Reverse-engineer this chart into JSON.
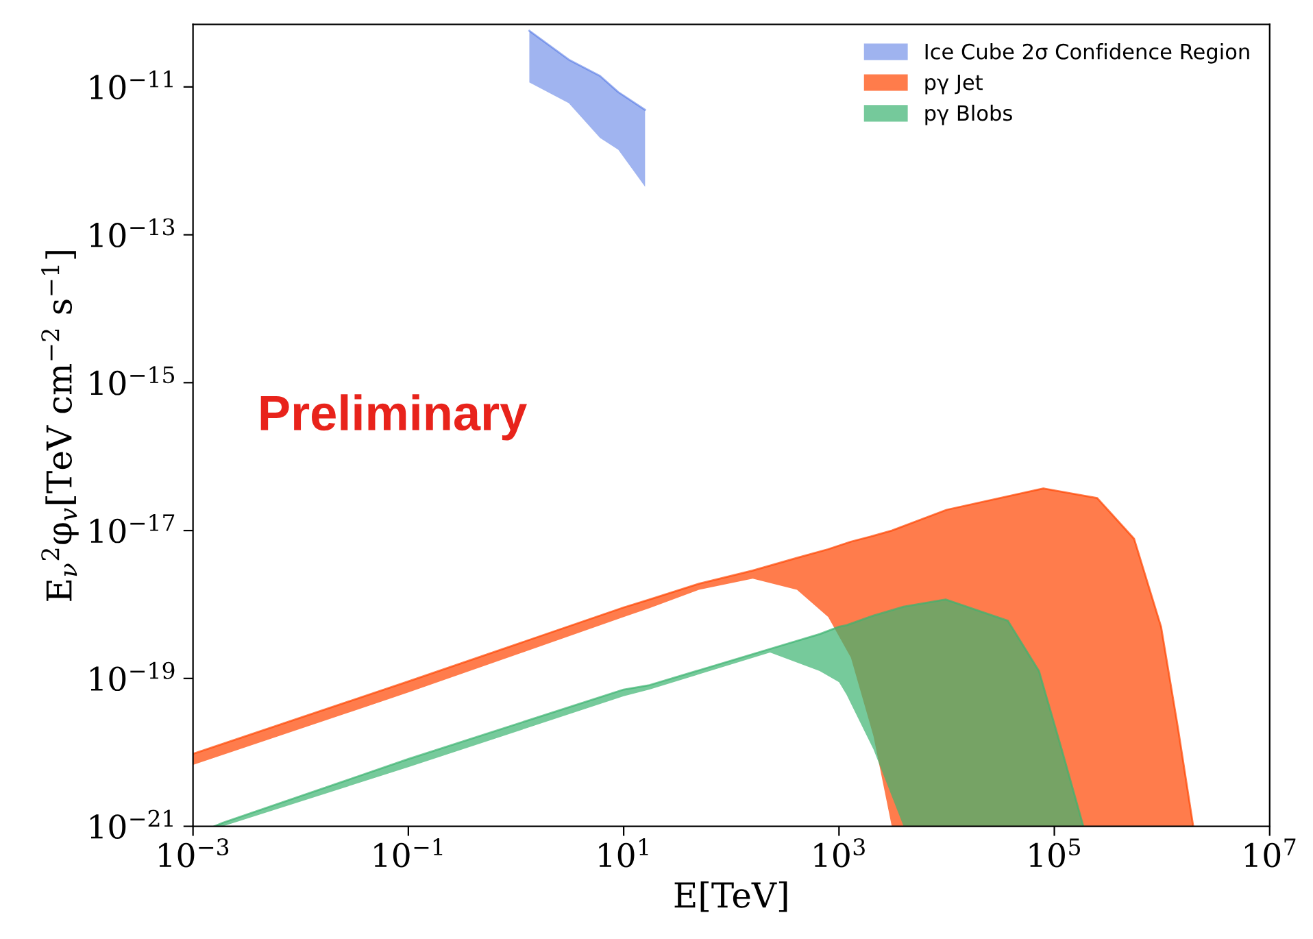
{
  "chart_data": {
    "type": "line",
    "xlabel": "E[TeV]",
    "ylabel": "E$_{ν}$$^{2}$φ$_{v}$[TeV cm$^{−2}$ s$^{−1}$]",
    "log": "xy",
    "legend": "top right",
    "grid": false,
    "annotations": [
      "Preliminary"
    ],
    "xlim": [
      0.001,
      10000000
    ],
    "ylim": [
      1e-21,
      7e-11
    ],
    "xticks": [
      {
        "value": 0.001,
        "label": "10$^{−3}$"
      },
      {
        "value": 0.1,
        "label": "10$^{−1}$"
      },
      {
        "value": 10,
        "label": "10$^{1}$"
      },
      {
        "value": 1000,
        "label": "10$^{3}$"
      },
      {
        "value": 100000,
        "label": "10$^{5}$"
      },
      {
        "value": 10000000,
        "label": "10$^{7}$"
      }
    ],
    "yticks": [
      {
        "value": 1e-21,
        "label": "10$^{−21}$"
      },
      {
        "value": 1e-19,
        "label": "10$^{−19}$"
      },
      {
        "value": 1e-17,
        "label": "10$^{−17}$"
      },
      {
        "value": 1e-15,
        "label": "10$^{−15}$"
      },
      {
        "value": 1e-13,
        "label": "10$^{−13}$"
      },
      {
        "value": 1e-11,
        "label": "10$^{−11}$"
      }
    ],
    "series": [
      {
        "name": "Ice Cube 2σ Confidence Region",
        "color": "#4169e1",
        "x": [
          1.33,
          3.09,
          6.03,
          8.91,
          15.8
        ],
        "values": [
          5.75e-11,
          2.34e-11,
          1.41e-11,
          8.51e-12,
          4.9e-12
        ],
        "upper": [
          5.75e-11,
          2.34e-11,
          1.41e-11,
          8.51e-12,
          4.9e-12
        ],
        "lower": [
          1.15e-11,
          6.03e-12,
          2.04e-12,
          1.41e-12,
          4.47e-13
        ]
      },
      {
        "name": "pγ Jet",
        "color": "#ff4500",
        "x": [
          0.001,
          0.1,
          10,
          17.4,
          50,
          158,
          407,
          794,
          1290,
          2090,
          3090,
          10000,
          79000,
          250000,
          550000,
          980000,
          1400000,
          1950000
        ],
        "values": [
          9.55e-21,
          9.12e-20,
          9.12e-19,
          1.17e-18,
          1.91e-18,
          2.88e-18,
          4.27e-18,
          5.6e-18,
          7.08e-18,
          8.51e-18,
          1e-17,
          1.91e-17,
          3.72e-17,
          2.75e-17,
          7.76e-18,
          5.01e-19,
          2.24e-20,
          1e-21
        ],
        "upper": [
          9.55e-21,
          9.12e-20,
          9.12e-19,
          1.17e-18,
          1.91e-18,
          2.88e-18,
          4.27e-18,
          5.6e-18,
          7.08e-18,
          8.51e-18,
          1e-17,
          1.91e-17,
          3.72e-17,
          2.75e-17,
          7.76e-18,
          5.01e-19,
          2.24e-20,
          1e-21
        ],
        "lower": [
          6.76e-21,
          6.46e-20,
          6.76e-19,
          8.91e-19,
          1.58e-18,
          2.24e-18,
          1.58e-18,
          6.76e-19,
          1.91e-19,
          1.66e-20,
          1e-21,
          1e-21,
          1e-21,
          1e-21,
          1e-21,
          1e-21,
          1e-21,
          1e-21
        ]
      },
      {
        "name": "pγ Blobs",
        "color": "#3cb371",
        "x": [
          0.00158,
          0.0019,
          0.1,
          10,
          17.4,
          229,
          661,
          1000,
          1175,
          2090,
          3980,
          9770,
          37000,
          72000,
          117000,
          186000
        ],
        "values": [
          1e-21,
          1.12e-21,
          8.13e-21,
          7.08e-20,
          8.13e-20,
          2.51e-19,
          3.98e-19,
          5.01e-19,
          5.25e-19,
          7.08e-19,
          9.33e-19,
          1.17e-18,
          6.03e-19,
          1.26e-19,
          1.1e-20,
          1e-21
        ],
        "upper": [
          1e-21,
          1.12e-21,
          8.13e-21,
          7.08e-20,
          8.13e-20,
          2.51e-19,
          3.98e-19,
          5.01e-19,
          5.25e-19,
          7.08e-19,
          9.33e-19,
          1.17e-18,
          6.03e-19,
          1.26e-19,
          1.1e-20,
          1e-21
        ],
        "lower": [
          1e-21,
          1e-21,
          6.31e-21,
          5.75e-20,
          7.08e-20,
          2.24e-19,
          1.26e-19,
          8.91e-20,
          6.03e-20,
          1.1e-20,
          1e-21,
          1e-21,
          1e-21,
          1e-21,
          1e-21,
          1e-21
        ]
      }
    ]
  }
}
